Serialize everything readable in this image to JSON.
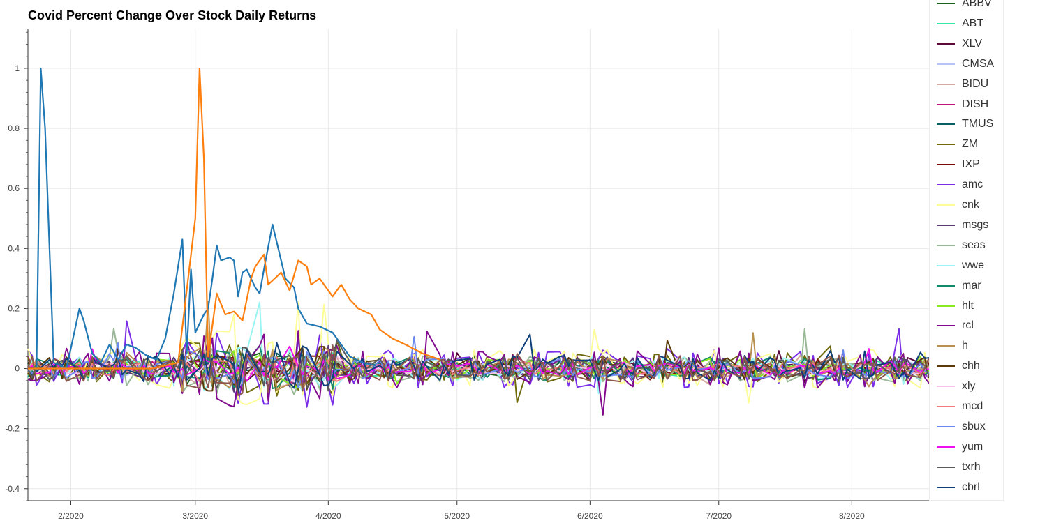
{
  "chart_data": {
    "type": "line",
    "title": "Covid Percent Change Over Stock Daily Returns",
    "xlabel": "",
    "ylabel": "",
    "ylim": [
      -0.44,
      1.13
    ],
    "xlim": [
      "2020-01-22",
      "2020-08-19"
    ],
    "y_ticks": [
      "-0.4",
      "-0.2",
      "0",
      "0.2",
      "0.4",
      "0.6",
      "0.8",
      "1"
    ],
    "x_ticks": [
      {
        "label": "2/2020",
        "date": "2020-02-01"
      },
      {
        "label": "3/2020",
        "date": "2020-03-01"
      },
      {
        "label": "4/2020",
        "date": "2020-04-01"
      },
      {
        "label": "5/2020",
        "date": "2020-05-01"
      },
      {
        "label": "6/2020",
        "date": "2020-06-01"
      },
      {
        "label": "7/2020",
        "date": "2020-07-01"
      },
      {
        "label": "8/2020",
        "date": "2020-08-01"
      }
    ],
    "grid": true,
    "legend_position": "right",
    "covid_series": [
      {
        "color": "#1f77b4",
        "points": [
          [
            "2020-01-22",
            0.0
          ],
          [
            "2020-01-24",
            0.0
          ],
          [
            "2020-01-25",
            1.0
          ],
          [
            "2020-01-26",
            0.8
          ],
          [
            "2020-01-28",
            0.02
          ],
          [
            "2020-01-31",
            0.0
          ],
          [
            "2020-02-03",
            0.2
          ],
          [
            "2020-02-04",
            0.16
          ],
          [
            "2020-02-06",
            0.05
          ],
          [
            "2020-02-08",
            0.02
          ],
          [
            "2020-02-10",
            0.08
          ],
          [
            "2020-02-12",
            0.03
          ],
          [
            "2020-02-14",
            0.08
          ],
          [
            "2020-02-16",
            0.07
          ],
          [
            "2020-02-19",
            0.04
          ],
          [
            "2020-02-21",
            0.03
          ],
          [
            "2020-02-23",
            0.1
          ],
          [
            "2020-02-25",
            0.25
          ],
          [
            "2020-02-27",
            0.43
          ],
          [
            "2020-02-28",
            0.05
          ],
          [
            "2020-02-29",
            0.33
          ],
          [
            "2020-03-01",
            0.12
          ],
          [
            "2020-03-03",
            0.18
          ],
          [
            "2020-03-04",
            0.2
          ],
          [
            "2020-03-05",
            0.3
          ],
          [
            "2020-03-06",
            0.41
          ],
          [
            "2020-03-07",
            0.36
          ],
          [
            "2020-03-09",
            0.37
          ],
          [
            "2020-03-10",
            0.36
          ],
          [
            "2020-03-11",
            0.24
          ],
          [
            "2020-03-12",
            0.32
          ],
          [
            "2020-03-13",
            0.33
          ],
          [
            "2020-03-15",
            0.27
          ],
          [
            "2020-03-16",
            0.25
          ],
          [
            "2020-03-17",
            0.33
          ],
          [
            "2020-03-19",
            0.48
          ],
          [
            "2020-03-20",
            0.42
          ],
          [
            "2020-03-22",
            0.3
          ],
          [
            "2020-03-24",
            0.27
          ],
          [
            "2020-03-25",
            0.2
          ],
          [
            "2020-03-27",
            0.15
          ],
          [
            "2020-03-30",
            0.14
          ],
          [
            "2020-04-02",
            0.12
          ],
          [
            "2020-04-04",
            0.08
          ],
          [
            "2020-04-06",
            0.04
          ],
          [
            "2020-04-09",
            0.02
          ],
          [
            "2020-04-12",
            0.01
          ]
        ]
      },
      {
        "color": "#ff7f0e",
        "points": [
          [
            "2020-01-22",
            0.0
          ],
          [
            "2020-02-20",
            0.0
          ],
          [
            "2020-02-26",
            0.02
          ],
          [
            "2020-03-01",
            0.5
          ],
          [
            "2020-03-02",
            1.0
          ],
          [
            "2020-03-03",
            0.7
          ],
          [
            "2020-03-04",
            0.04
          ],
          [
            "2020-03-06",
            0.25
          ],
          [
            "2020-03-08",
            0.18
          ],
          [
            "2020-03-10",
            0.19
          ],
          [
            "2020-03-12",
            0.16
          ],
          [
            "2020-03-14",
            0.3
          ],
          [
            "2020-03-15",
            0.34
          ],
          [
            "2020-03-17",
            0.38
          ],
          [
            "2020-03-18",
            0.28
          ],
          [
            "2020-03-21",
            0.32
          ],
          [
            "2020-03-23",
            0.26
          ],
          [
            "2020-03-25",
            0.36
          ],
          [
            "2020-03-27",
            0.34
          ],
          [
            "2020-03-28",
            0.28
          ],
          [
            "2020-03-30",
            0.3
          ],
          [
            "2020-04-02",
            0.24
          ],
          [
            "2020-04-04",
            0.28
          ],
          [
            "2020-04-06",
            0.23
          ],
          [
            "2020-04-08",
            0.2
          ],
          [
            "2020-04-11",
            0.18
          ],
          [
            "2020-04-13",
            0.13
          ],
          [
            "2020-04-16",
            0.1
          ],
          [
            "2020-04-19",
            0.08
          ],
          [
            "2020-04-23",
            0.05
          ],
          [
            "2020-04-27",
            0.03
          ]
        ]
      }
    ],
    "series": [
      {
        "name": "ABBV",
        "color": "#1b5e20",
        "amp": 0.05
      },
      {
        "name": "ABT",
        "color": "#35e6a6",
        "amp": 0.05
      },
      {
        "name": "XLV",
        "color": "#5c0a3a",
        "amp": 0.04
      },
      {
        "name": "CMSA",
        "color": "#b9c2f5",
        "amp": 0.04
      },
      {
        "name": "BIDU",
        "color": "#d7a89e",
        "amp": 0.06
      },
      {
        "name": "DISH",
        "color": "#c2127e",
        "amp": 0.05
      },
      {
        "name": "TMUS",
        "color": "#0b5e5e",
        "amp": 0.05
      },
      {
        "name": "ZM",
        "color": "#6e6a0a",
        "amp": 0.09
      },
      {
        "name": "IXP",
        "color": "#7a0a0a",
        "amp": 0.04
      },
      {
        "name": "amc",
        "color": "#7a2ee8",
        "amp": 0.12
      },
      {
        "name": "cnk",
        "color": "#fdfd96",
        "amp": 0.12
      },
      {
        "name": "msgs",
        "color": "#5a3a78",
        "amp": 0.07
      },
      {
        "name": "seas",
        "color": "#98b895",
        "amp": 0.08
      },
      {
        "name": "wwe",
        "color": "#99f5f2",
        "amp": 0.07
      },
      {
        "name": "mar",
        "color": "#138a6c",
        "amp": 0.07
      },
      {
        "name": "hlt",
        "color": "#8be81f",
        "amp": 0.06
      },
      {
        "name": "rcl",
        "color": "#820a8e",
        "amp": 0.12
      },
      {
        "name": "h",
        "color": "#b89050",
        "amp": 0.07
      },
      {
        "name": "chh",
        "color": "#5a3a08",
        "amp": 0.07
      },
      {
        "name": "xly",
        "color": "#fbc0e8",
        "amp": 0.04
      },
      {
        "name": "mcd",
        "color": "#f27a7a",
        "amp": 0.04
      },
      {
        "name": "sbux",
        "color": "#6a88f0",
        "amp": 0.06
      },
      {
        "name": "yum",
        "color": "#ee10ee",
        "amp": 0.04
      },
      {
        "name": "txrh",
        "color": "#5a5a5a",
        "amp": 0.07
      },
      {
        "name": "cbrl",
        "color": "#0d3f7a",
        "amp": 0.08
      }
    ],
    "extra_brown_series_color": "#8c564b"
  }
}
